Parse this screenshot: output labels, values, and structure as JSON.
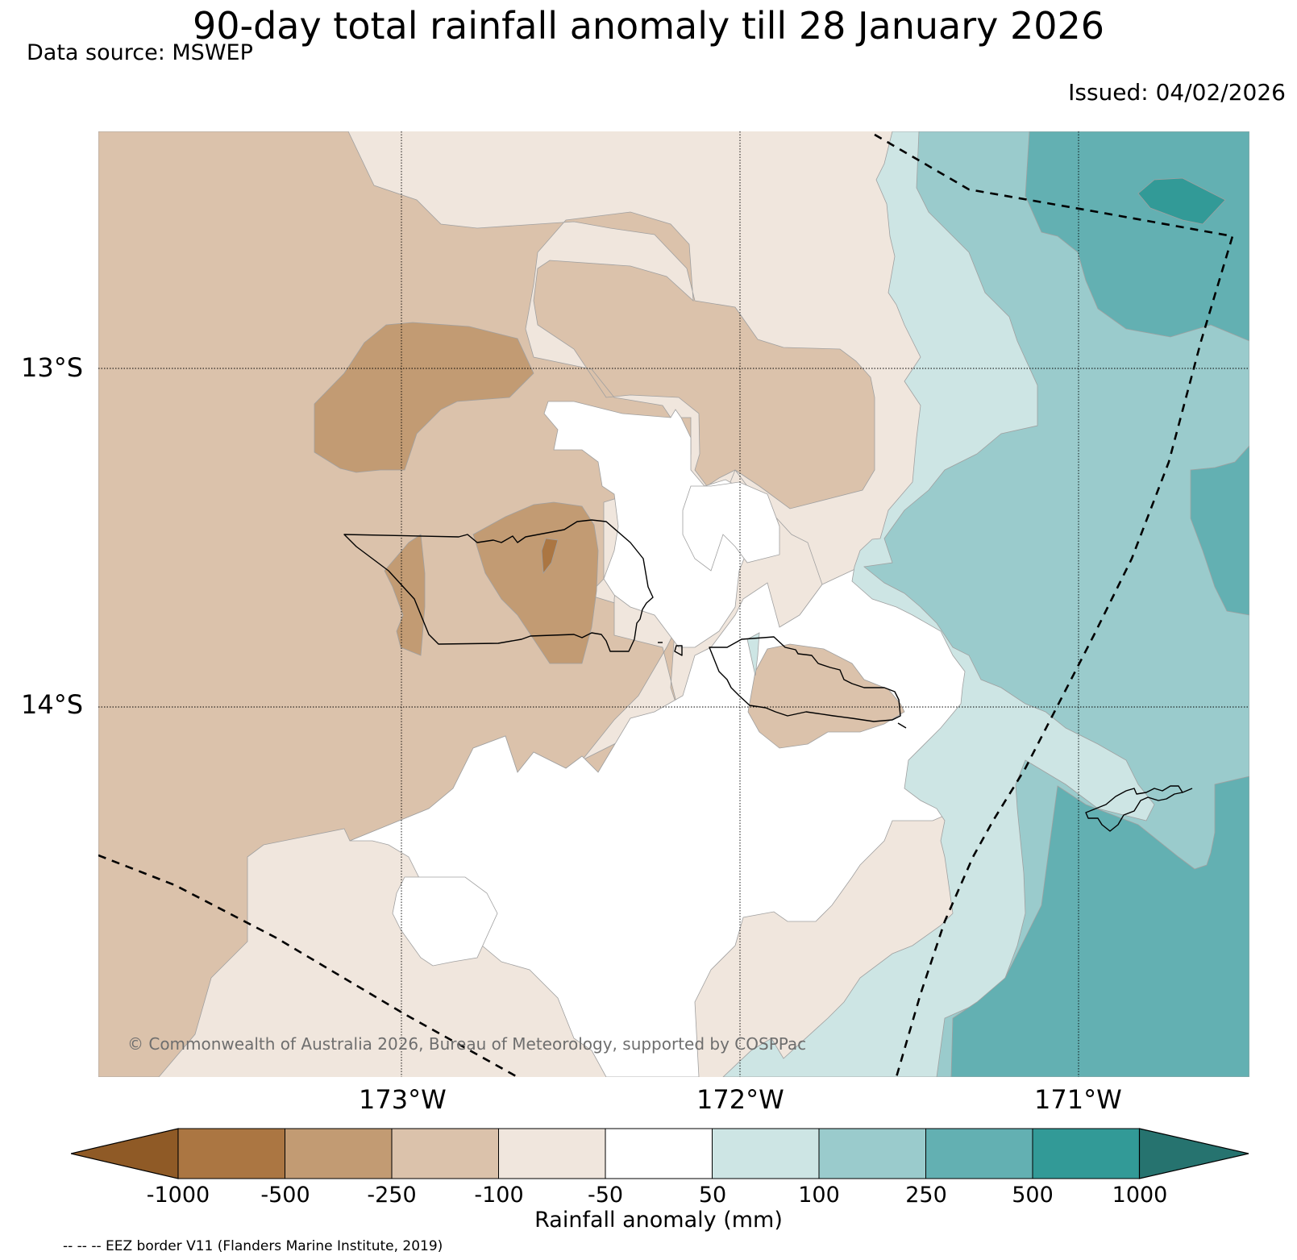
{
  "title": "90-day total rainfall anomaly till 28 January 2026",
  "data_source": "Data source: MSWEP",
  "issued": "Issued: 04/02/2026",
  "latitude_labels": [
    "13°S",
    "14°S"
  ],
  "longitude_labels": [
    "173°W",
    "172°W",
    "171°W"
  ],
  "copyright": "© Commonwealth of Australia 2026, Bureau of Meteorology, supported by COSPPac",
  "colorbar": {
    "label": "Rainfall anomaly (mm)",
    "ticks": [
      "-1000",
      "-500",
      "-250",
      "-100",
      "-50",
      "50",
      "100",
      "250",
      "500",
      "1000"
    ],
    "colors": [
      "#8f5a26",
      "#ab7642",
      "#c29b73",
      "#dbc2ab",
      "#f0e6dd",
      "#ffffff",
      "#cde5e4",
      "#9acbcc",
      "#63b0b2",
      "#329a97",
      "#26736f"
    ]
  },
  "legend_note": "-- -- -- EEZ border V11 (Flanders Marine Institute, 2019)",
  "map_layers": [
    "rainfall-anomaly-contours",
    "coastlines",
    "eez-border",
    "graticule"
  ]
}
